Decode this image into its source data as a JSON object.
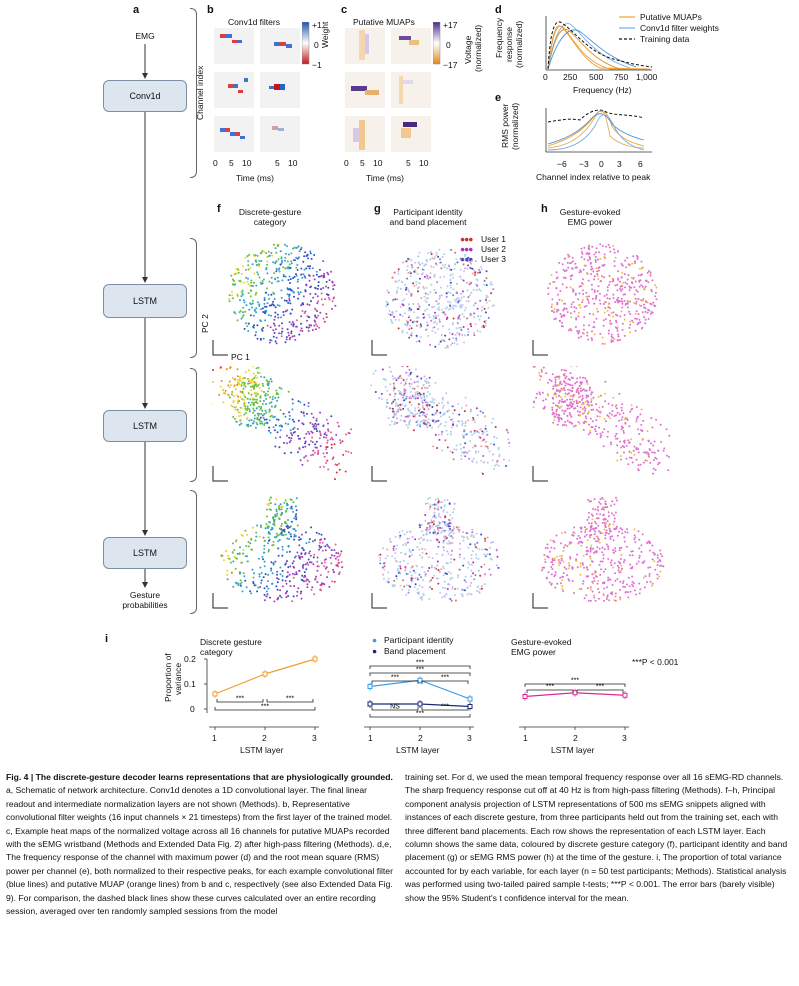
{
  "panels": {
    "a": "a",
    "b": "b",
    "c": "c",
    "d": "d",
    "e": "e",
    "f": "f",
    "g": "g",
    "h": "h",
    "i": "i"
  },
  "schematic": {
    "emg": "EMG",
    "conv": "Conv1d",
    "lstm": "LSTM",
    "output_line1": "Gesture",
    "output_line2": "probabilities"
  },
  "panel_b": {
    "title": "Conv1d filters",
    "ylabel": "Channel index",
    "xlabel": "Time (ms)",
    "ticks": [
      "0",
      "5",
      "10",
      "5",
      "10"
    ],
    "cbar_title": "Weight",
    "cbar_ticks": [
      "+1",
      "0",
      "−1"
    ]
  },
  "panel_c": {
    "title": "Putative MUAPs",
    "xlabel": "Time (ms)",
    "ticks": [
      "0",
      "5",
      "10",
      "5",
      "10"
    ],
    "cbar_title_1": "Voltage",
    "cbar_title_2": "(normalized)",
    "cbar_ticks": [
      "+17",
      "0",
      "−17"
    ]
  },
  "panel_d": {
    "ylabel_1": "Frequency",
    "ylabel_2": "response",
    "ylabel_3": "(normalized)",
    "xlabel": "Frequency (Hz)",
    "xticks": [
      "0",
      "250",
      "500",
      "750",
      "1,000"
    ],
    "legend": [
      "Putative MUAPs",
      "Conv1d filter weights",
      "Training data"
    ]
  },
  "panel_e": {
    "ylabel_1": "RMS power",
    "ylabel_2": "(normalized)",
    "xlabel": "Channel index relative to peak",
    "xticks": [
      "−6",
      "−3",
      "0",
      "3",
      "6"
    ]
  },
  "pca": {
    "f_title_1": "Discrete-gesture",
    "f_title_2": "category",
    "g_title_1": "Participant identity",
    "g_title_2": "and band placement",
    "h_title_1": "Gesture-evoked",
    "h_title_2": "EMG power",
    "users": [
      "User 1",
      "User 2",
      "User 3"
    ],
    "pc1": "PC 1",
    "pc2": "PC 2"
  },
  "panel_i": {
    "ylabel_1": "Proportion of",
    "ylabel_2": "variance",
    "yticks": [
      "0",
      "0.1",
      "0.2"
    ],
    "xticks": [
      "1",
      "2",
      "3"
    ],
    "xlabel": "LSTM layer",
    "sub1_title_1": "Discrete gesture",
    "sub1_title_2": "category",
    "sub2_legend": [
      "Participant identity",
      "Band placement"
    ],
    "sub3_title_1": "Gesture-evoked",
    "sub3_title_2": "EMG power",
    "sig": "***",
    "ns": "NS",
    "pnote": "***P < 0.001"
  },
  "chart_data": [
    {
      "type": "line",
      "title": "Discrete gesture category",
      "xlabel": "LSTM layer",
      "ylabel": "Proportion of variance",
      "x": [
        1,
        2,
        3
      ],
      "ylim": [
        0,
        0.2
      ],
      "series": [
        {
          "values": [
            0.06,
            0.14,
            0.2
          ]
        }
      ]
    },
    {
      "type": "line",
      "xlabel": "LSTM layer",
      "x": [
        1,
        2,
        3
      ],
      "ylim": [
        0,
        0.2
      ],
      "series": [
        {
          "name": "Participant identity",
          "values": [
            0.09,
            0.115,
            0.04
          ]
        },
        {
          "name": "Band placement",
          "values": [
            0.02,
            0.02,
            0.01
          ]
        }
      ]
    },
    {
      "type": "line",
      "title": "Gesture-evoked EMG power",
      "xlabel": "LSTM layer",
      "x": [
        1,
        2,
        3
      ],
      "ylim": [
        0,
        0.2
      ],
      "series": [
        {
          "values": [
            0.05,
            0.065,
            0.055
          ]
        }
      ]
    }
  ],
  "colors": {
    "orange": "#f0a030",
    "blue": "#3d9be9",
    "navy": "#1a2a7a",
    "magenta": "#e0289a",
    "box_fill": "#dde6ef"
  },
  "caption": {
    "left_bold": "Fig. 4 | The discrete-gesture decoder learns representations that are physiologically grounded.",
    "left_text": " a, Schematic of network architecture. Conv1d denotes a 1D convolutional layer. The final linear readout and intermediate normalization layers are not shown (Methods). b, Representative convolutional filter weights (16 input channels × 21 timesteps) from the first layer of the trained model. c, Example heat maps of the normalized voltage across all 16 channels for putative MUAPs recorded with the sEMG wristband (Methods and Extended Data Fig. 2) after high-pass filtering (Methods). d,e, The frequency response of the channel with maximum power (d) and the root mean square (RMS) power per channel (e), both normalized to their respective peaks, for each example convolutional filter (blue lines) and putative MUAP (orange lines) from b and c, respectively (see also Extended Data Fig. 9). For comparison, the dashed black lines show these curves calculated over an entire recording session, averaged over ten randomly sampled sessions from the model",
    "right_text": "training set. For d, we used the mean temporal frequency response over all 16 sEMG-RD channels. The sharp frequency response cut off at 40 Hz is from high-pass filtering (Methods). f–h, Principal component analysis projection of LSTM representations of 500 ms sEMG snippets aligned with instances of each discrete gesture, from three participants held out from the training set, each with three different band placements. Each row shows the representation of each LSTM layer. Each column shows the same data, coloured by discrete gesture category (f), participant identity and band placement (g) or sEMG RMS power (h) at the time of the gesture. i, The proportion of total variance accounted for by each variable, for each layer (n = 50 test participants; Methods). Statistical analysis was performed using two-tailed paired sample t-tests; ***P < 0.001. The error bars (barely visible) show the 95% Student's t confidence interval for the mean."
  }
}
